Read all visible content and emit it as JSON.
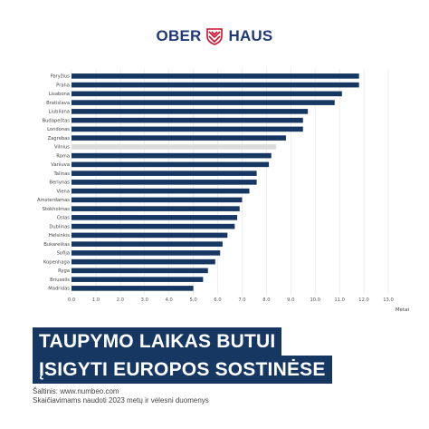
{
  "logo": {
    "word_left": "OBER",
    "word_right": "HAUS",
    "brand_color": "#1f3a78",
    "accent_color": "#c8102e"
  },
  "banner": {
    "line1": "TAUPYMO LAIKAS BUTUI",
    "line2": "ĮSIGYTI EUROPOS SOSTINĖSE",
    "color": "#173763"
  },
  "footer": {
    "source": "Šaltinis: www.numbeo.com",
    "note": "Skaičiavimams naudoti 2023 metų ir vėlesni duomenys"
  },
  "chart_data": {
    "type": "bar",
    "orientation": "horizontal",
    "categories": [
      "Paryžius",
      "Praha",
      "Lisabona",
      "Bratislava",
      "Liubliana",
      "Budapeštas",
      "Londonas",
      "Zagrebas",
      "Vilnius",
      "Roma",
      "Varšuva",
      "Talinas",
      "Berlynas",
      "Viena",
      "Amsterdamas",
      "Stokholmas",
      "Oslas",
      "Dublinas",
      "Helsinkis",
      "Bukareštas",
      "Sofija",
      "Kopenhaga",
      "Ryga",
      "Briuselis",
      "Madridas"
    ],
    "values": [
      11.8,
      11.8,
      11.1,
      10.8,
      9.7,
      9.5,
      9.5,
      8.8,
      8.4,
      8.2,
      8.1,
      7.6,
      7.6,
      7.3,
      7.0,
      6.9,
      6.8,
      6.7,
      6.4,
      6.2,
      6.1,
      5.9,
      5.6,
      5.4,
      5.0
    ],
    "highlight": "Vilnius",
    "bar_color": "#173763",
    "highlight_color": "#dcdcdc",
    "xlim": [
      0,
      13
    ],
    "xticks": [
      "0.0",
      "1.0",
      "2.0",
      "3.0",
      "4.0",
      "5.0",
      "6.0",
      "7.0",
      "8.0",
      "9.0",
      "10.0",
      "11.0",
      "12.0",
      "13.0"
    ],
    "xlabel": "Metai",
    "grid": true
  }
}
